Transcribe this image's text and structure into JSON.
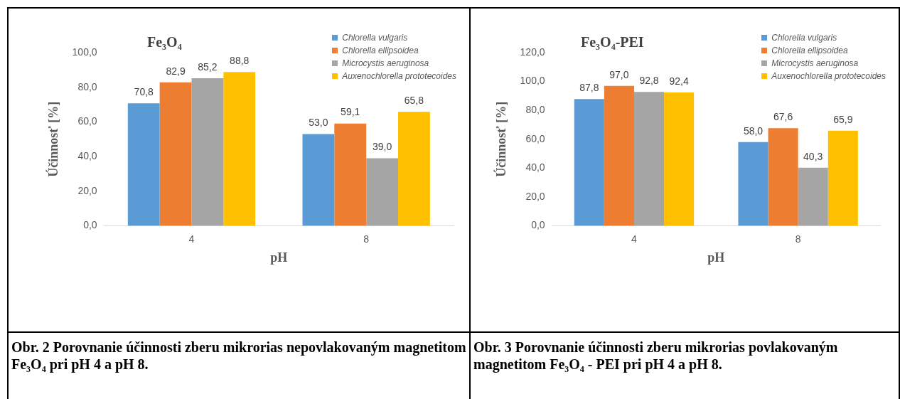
{
  "chart_data": [
    {
      "type": "bar",
      "title": "Fe₃O₄",
      "xlabel": "pH",
      "ylabel": "Účinnosť [%]",
      "categories": [
        "4",
        "8"
      ],
      "series": [
        {
          "name": "Chlorella vulgaris",
          "color": "#5b9bd5",
          "values": [
            70.8,
            53.0
          ],
          "value_labels": [
            "70,8",
            "53,0"
          ]
        },
        {
          "name": "Chlorella ellipsoidea",
          "color": "#ed7d31",
          "values": [
            82.9,
            59.1
          ],
          "value_labels": [
            "82,9",
            "59,1"
          ]
        },
        {
          "name": "Microcystis aeruginosa",
          "color": "#a5a5a5",
          "values": [
            85.2,
            39.0
          ],
          "value_labels": [
            "85,2",
            "39,0"
          ]
        },
        {
          "name": "Auxenochlorella prototecoides",
          "color": "#ffc000",
          "values": [
            88.8,
            65.8
          ],
          "value_labels": [
            "88,8",
            "65,8"
          ]
        }
      ],
      "ylim": [
        0,
        100
      ],
      "yticks": [
        {
          "value": 0,
          "label": "0,0"
        },
        {
          "value": 20,
          "label": "20,0"
        },
        {
          "value": 40,
          "label": "40,0"
        },
        {
          "value": 60,
          "label": "60,0"
        },
        {
          "value": 80,
          "label": "80,0"
        },
        {
          "value": 100,
          "label": "100,0"
        }
      ],
      "grid": false,
      "legend": "top right",
      "annotations": [
        "Obr. 2 Porovnanie účinnosti zberu mikrorias nepovlakovaným magnetitom Fe₃O₄ pri pH 4 a pH 8."
      ]
    },
    {
      "type": "bar",
      "title": "Fe₃O₄-PEI",
      "xlabel": "pH",
      "ylabel": "Účinnosť [%]",
      "categories": [
        "4",
        "8"
      ],
      "series": [
        {
          "name": "Chlorella vulgaris",
          "color": "#5b9bd5",
          "values": [
            87.8,
            58.0
          ],
          "value_labels": [
            "87,8",
            "58,0"
          ]
        },
        {
          "name": "Chlorella ellipsoidea",
          "color": "#ed7d31",
          "values": [
            97.0,
            67.6
          ],
          "value_labels": [
            "97,0",
            "67,6"
          ]
        },
        {
          "name": "Microcystis aeruginosa",
          "color": "#a5a5a5",
          "values": [
            92.8,
            40.3
          ],
          "value_labels": [
            "92,8",
            "40,3"
          ]
        },
        {
          "name": "Auxenochlorella prototecoides",
          "color": "#ffc000",
          "values": [
            92.4,
            65.9
          ],
          "value_labels": [
            "92,4",
            "65,9"
          ]
        }
      ],
      "ylim": [
        0,
        120
      ],
      "yticks": [
        {
          "value": 0,
          "label": "0,0"
        },
        {
          "value": 20,
          "label": "20,0"
        },
        {
          "value": 40,
          "label": "40,0"
        },
        {
          "value": 60,
          "label": "60,0"
        },
        {
          "value": 80,
          "label": "80,0"
        },
        {
          "value": 100,
          "label": "100,0"
        },
        {
          "value": 120,
          "label": "120,0"
        }
      ],
      "grid": false,
      "legend": "top right",
      "annotations": [
        "Obr. 3 Porovnanie účinnosti zberu mikrorias povlakovaným magnetitom Fe₃O₄ - PEI pri pH 4 a pH 8."
      ]
    }
  ]
}
